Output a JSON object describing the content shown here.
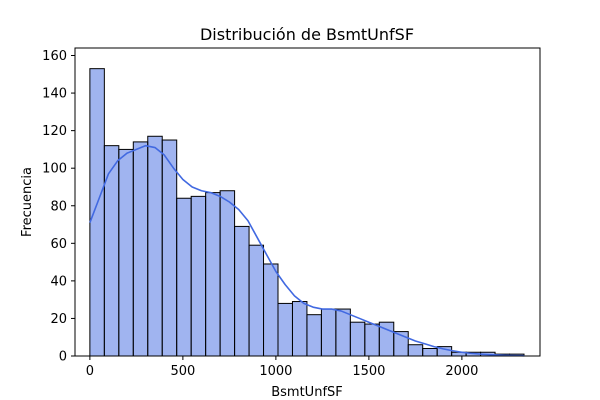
{
  "chart_data": {
    "type": "bar",
    "title": "Distribución de BsmtUnfSF",
    "xlabel": "BsmtUnfSF",
    "ylabel": "Frecuencia",
    "xlim": [
      -80,
      2420
    ],
    "ylim": [
      0,
      164
    ],
    "xticks": [
      0,
      500,
      1000,
      1500,
      2000
    ],
    "yticks": [
      0,
      20,
      40,
      60,
      80,
      100,
      120,
      140,
      160
    ],
    "grid": false,
    "bar_color": "#4169e1",
    "bar_fill_opacity": 0.5,
    "bar_edge_color": "#000000",
    "kde_color": "#4169e1",
    "bin_start": 0,
    "bin_width": 77.8,
    "values": [
      153,
      112,
      110,
      114,
      117,
      115,
      84,
      85,
      87,
      88,
      69,
      59,
      49,
      28,
      29,
      22,
      25,
      25,
      18,
      17,
      18,
      13,
      6,
      4,
      5,
      2,
      2,
      2,
      1,
      1
    ],
    "kde": {
      "x": [
        0,
        50,
        100,
        150,
        200,
        250,
        300,
        350,
        400,
        450,
        500,
        550,
        600,
        650,
        700,
        750,
        800,
        850,
        900,
        950,
        1000,
        1050,
        1100,
        1150,
        1200,
        1250,
        1300,
        1350,
        1400,
        1450,
        1500,
        1550,
        1600,
        1650,
        1700,
        1750,
        1800,
        1850,
        1900,
        1950,
        2000,
        2050,
        2100,
        2150,
        2200,
        2250,
        2300,
        2336
      ],
      "y": [
        71,
        84,
        97,
        104,
        108,
        110,
        112,
        111,
        107,
        100,
        94,
        90,
        88,
        87,
        85,
        82,
        78,
        72,
        63,
        54,
        45,
        38,
        32,
        28,
        26,
        25,
        25,
        24,
        22,
        20,
        18,
        16,
        14,
        12,
        10,
        8,
        6.5,
        5,
        3.8,
        2.8,
        2,
        1.4,
        1,
        0.7,
        0.5,
        0.3,
        0.2,
        0.1
      ]
    }
  }
}
